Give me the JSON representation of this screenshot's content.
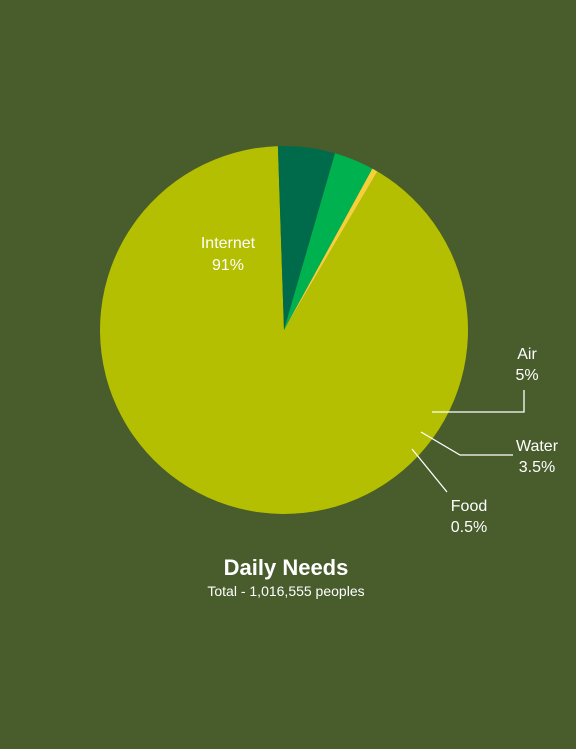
{
  "chart_data": {
    "type": "pie",
    "title": "Daily Needs",
    "subtitle": "Total - 1,016,555 peoples",
    "slices": [
      {
        "name": "Internet",
        "value": 91,
        "label": "91%",
        "color": "#b3bf00"
      },
      {
        "name": "Air",
        "value": 5,
        "label": "5%",
        "color": "#006b4a"
      },
      {
        "name": "Water",
        "value": 3.5,
        "label": "3.5%",
        "color": "#00b14f"
      },
      {
        "name": "Food",
        "value": 0.5,
        "label": "0.5%",
        "color": "#f4d03a"
      }
    ]
  }
}
